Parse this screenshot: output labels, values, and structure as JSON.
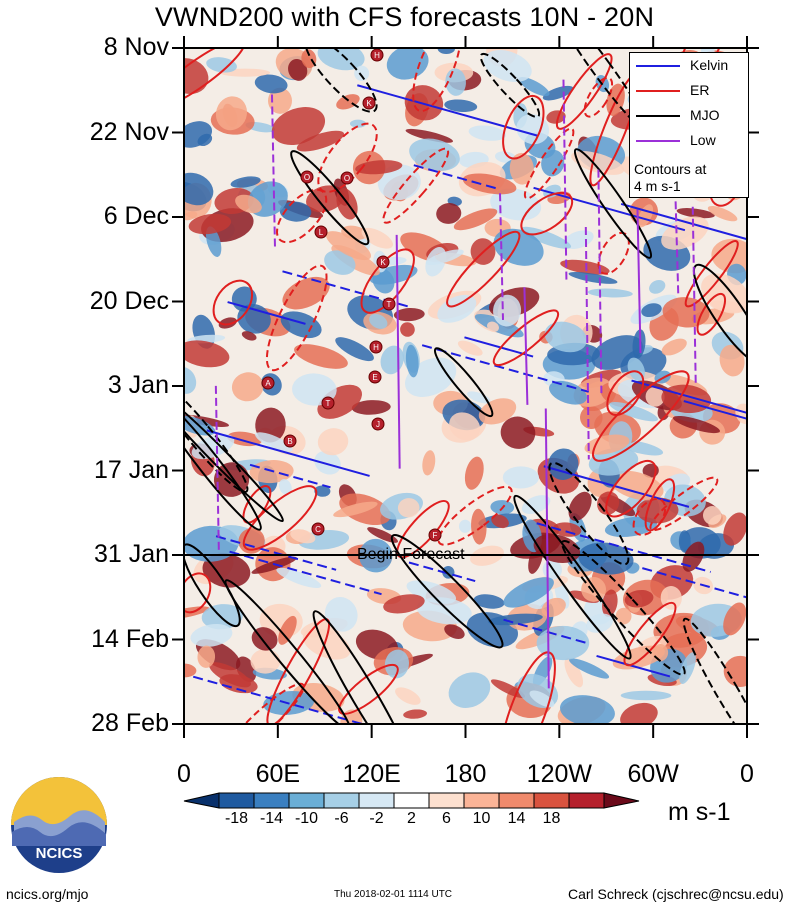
{
  "title": "VWND200 with CFS forecasts  10N - 20N",
  "units": "m s-1",
  "begin_forecast_label": "Begin Forecast",
  "legend": {
    "items": [
      {
        "label": "Kelvin",
        "color": "#1f1fe0"
      },
      {
        "label": "ER",
        "color": "#e01f1f"
      },
      {
        "label": "MJO",
        "color": "#000000"
      },
      {
        "label": "Low",
        "color": "#9b30d8"
      }
    ],
    "note_line1": "Contours at",
    "note_line2": "4 m s-1"
  },
  "footer": {
    "left": "ncics.org/mjo",
    "middle": "Thu 2018-02-01 1114 UTC",
    "right": "Carl Schreck (cjschrec@ncsu.edu)"
  },
  "logo_text": "NCICS",
  "chart_data": {
    "type": "heatmap",
    "title": "VWND200 with CFS forecasts  10N - 20N",
    "x_tick_labels": [
      "0",
      "60E",
      "120E",
      "180",
      "120W",
      "60W",
      "0"
    ],
    "y_tick_labels": [
      "8 Nov",
      "22 Nov",
      "6 Dec",
      "20 Dec",
      "3 Jan",
      "17 Jan",
      "31 Jan",
      "14 Feb",
      "28 Feb"
    ],
    "colorbar_labels": [
      "-18",
      "-14",
      "-10",
      "-6",
      "-2",
      "2",
      "6",
      "10",
      "14",
      "18"
    ],
    "colorbar_colors": [
      "#08306b",
      "#1f5aa0",
      "#3a7fc0",
      "#6aaed6",
      "#a6cfe6",
      "#d6e8f4",
      "#ffffff",
      "#fde0cf",
      "#fbb497",
      "#f08a6c",
      "#d9533f",
      "#b5202c",
      "#6b0a1a"
    ],
    "contour_interval": "4 m s-1",
    "forecast_start": "31 Jan",
    "contour_series": [
      "Kelvin",
      "ER",
      "MJO",
      "Low"
    ],
    "storm_markers": [
      "H",
      "K",
      "O",
      "O",
      "L",
      "K",
      "T",
      "H",
      "E",
      "T",
      "J",
      "A",
      "B",
      "C",
      "F"
    ]
  }
}
